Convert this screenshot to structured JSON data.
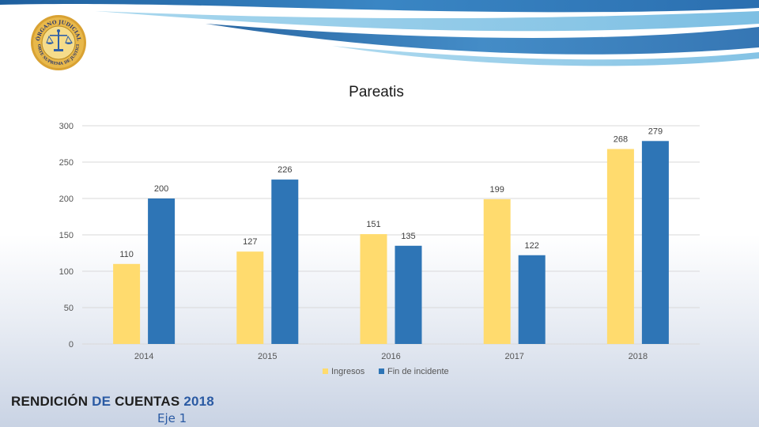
{
  "header": {
    "logo": {
      "top_text": "ÓRGANO JUDICIAL",
      "bottom_text": "CORTE SUPREMA DE JUSTICIA",
      "colors": {
        "ring": "#d9a233",
        "inner": "#f5dc8a",
        "emblem": "#2e5fa8"
      }
    }
  },
  "chart_data": {
    "type": "bar",
    "title": "Pareatis",
    "categories": [
      "2014",
      "2015",
      "2016",
      "2017",
      "2018"
    ],
    "series": [
      {
        "name": "Ingresos",
        "color": "#ffdb6e",
        "values": [
          110,
          127,
          151,
          199,
          268
        ]
      },
      {
        "name": "Fin de incidente",
        "color": "#2e75b6",
        "values": [
          200,
          226,
          135,
          122,
          279
        ]
      }
    ],
    "ylim": [
      0,
      300
    ],
    "yticks": [
      0,
      50,
      100,
      150,
      200,
      250,
      300
    ],
    "grid": true,
    "legend": "bottom-center"
  },
  "footer": {
    "title_part1": "RENDICIÓN ",
    "title_part2": "DE ",
    "title_part3": "CUENTAS ",
    "title_part4": "2018",
    "subtitle": "Eje 1"
  }
}
